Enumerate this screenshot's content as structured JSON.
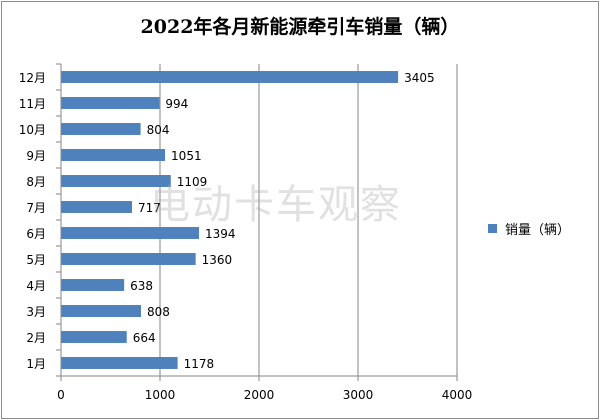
{
  "chart_data": {
    "type": "bar",
    "orientation": "horizontal",
    "title": "2022年各月新能源牵引车销量（辆）",
    "categories": [
      "1月",
      "2月",
      "3月",
      "4月",
      "5月",
      "6月",
      "7月",
      "8月",
      "9月",
      "10月",
      "11月",
      "12月"
    ],
    "series": [
      {
        "name": "销量（辆）",
        "values": [
          1178,
          664,
          808,
          638,
          1360,
          1394,
          717,
          1109,
          1051,
          804,
          994,
          3405
        ]
      }
    ],
    "xlim": [
      0,
      4000
    ],
    "x_ticks": [
      0,
      1000,
      2000,
      3000,
      4000
    ],
    "grid": "vertical",
    "legend_position": "right",
    "bar_color": "#4f81bd",
    "data_labels": true
  },
  "watermark": "电动卡车观察"
}
